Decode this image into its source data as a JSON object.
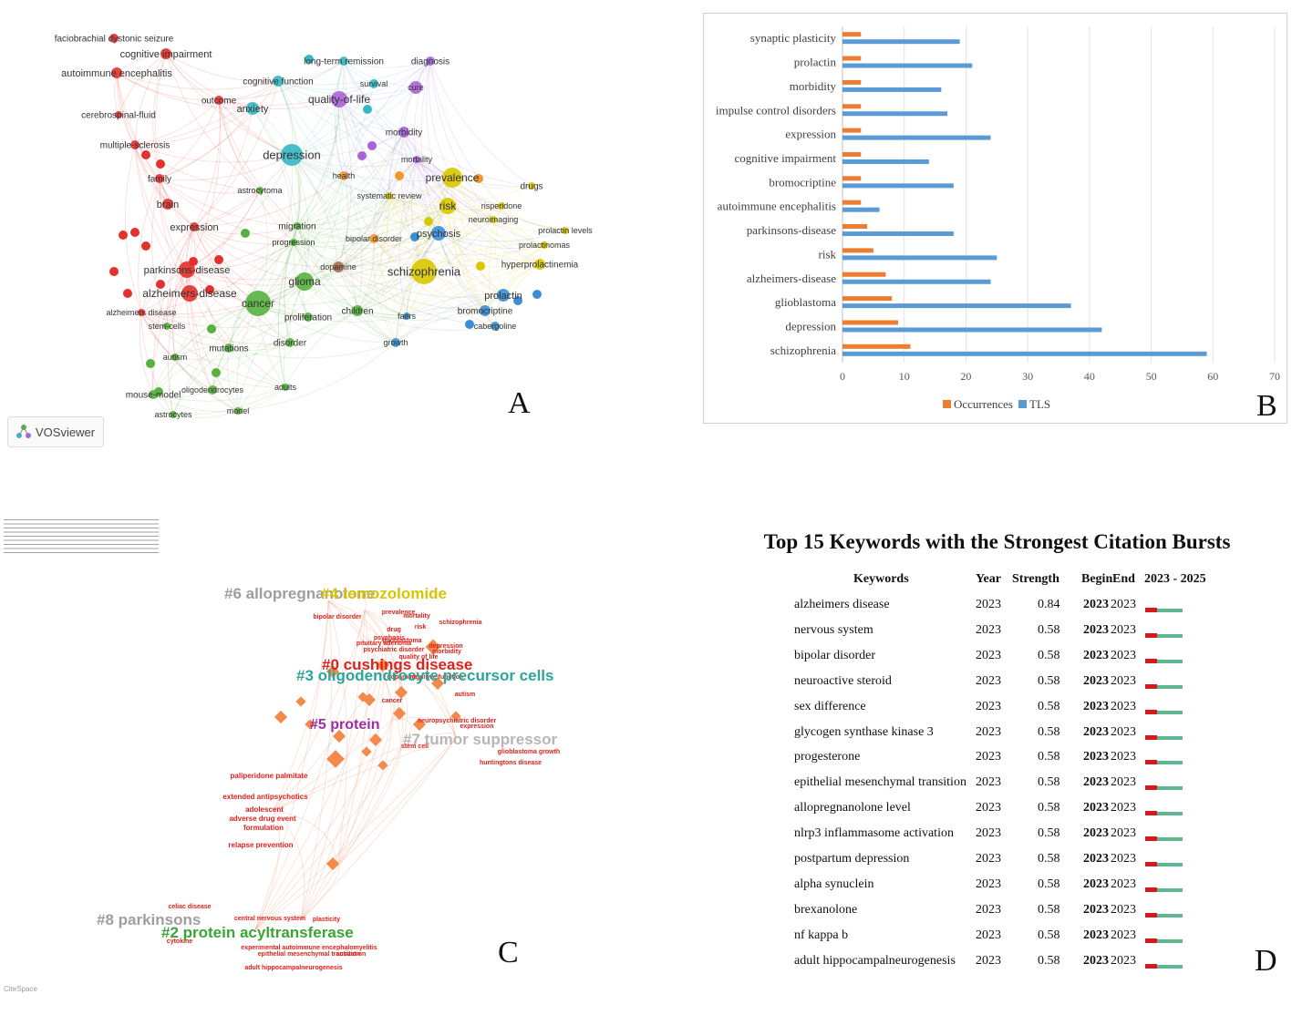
{
  "panel_labels": {
    "a": "A",
    "b": "B",
    "c": "C",
    "d": "D"
  },
  "vosviewer": {
    "badge_text": "VOSviewer",
    "nodes": [
      {
        "label": "faciobrachial dystonic seizure",
        "cluster": "red"
      },
      {
        "label": "cognitive impairment",
        "cluster": "red"
      },
      {
        "label": "autoimmune encephalitis",
        "cluster": "red"
      },
      {
        "label": "cerebrospinal-fluid",
        "cluster": "red"
      },
      {
        "label": "multiple-sclerosis",
        "cluster": "red"
      },
      {
        "label": "family",
        "cluster": "red"
      },
      {
        "label": "brain",
        "cluster": "red"
      },
      {
        "label": "expression",
        "cluster": "red"
      },
      {
        "label": "parkinsons-disease",
        "cluster": "red"
      },
      {
        "label": "alzheimers-disease",
        "cluster": "red"
      },
      {
        "label": "alzheimers disease",
        "cluster": "red"
      },
      {
        "label": "outcome",
        "cluster": "red"
      },
      {
        "label": "stem-cells",
        "cluster": "green"
      },
      {
        "label": "cancer",
        "cluster": "green"
      },
      {
        "label": "glioma",
        "cluster": "green"
      },
      {
        "label": "astrocytoma",
        "cluster": "green"
      },
      {
        "label": "migration",
        "cluster": "green"
      },
      {
        "label": "progression",
        "cluster": "green"
      },
      {
        "label": "proliferation",
        "cluster": "green"
      },
      {
        "label": "mutations",
        "cluster": "green"
      },
      {
        "label": "autism",
        "cluster": "green"
      },
      {
        "label": "disorder",
        "cluster": "green"
      },
      {
        "label": "children",
        "cluster": "green"
      },
      {
        "label": "mouse-model",
        "cluster": "green"
      },
      {
        "label": "oligodendrocytes",
        "cluster": "green"
      },
      {
        "label": "astrocytes",
        "cluster": "green"
      },
      {
        "label": "model",
        "cluster": "green"
      },
      {
        "label": "adults",
        "cluster": "green"
      },
      {
        "label": "dopamine",
        "cluster": "brown"
      },
      {
        "label": "depression",
        "cluster": "cyan"
      },
      {
        "label": "anxiety",
        "cluster": "cyan"
      },
      {
        "label": "cognitive function",
        "cluster": "cyan"
      },
      {
        "label": "long-term remission",
        "cluster": "cyan"
      },
      {
        "label": "survival",
        "cluster": "cyan"
      },
      {
        "label": "quality-of-life",
        "cluster": "purple"
      },
      {
        "label": "diagnosis",
        "cluster": "purple"
      },
      {
        "label": "cure",
        "cluster": "purple"
      },
      {
        "label": "morbidity",
        "cluster": "purple"
      },
      {
        "label": "mortality",
        "cluster": "purple"
      },
      {
        "label": "health",
        "cluster": "orange"
      },
      {
        "label": "systematic review",
        "cluster": "yellow"
      },
      {
        "label": "prevalence",
        "cluster": "yellow"
      },
      {
        "label": "drugs",
        "cluster": "yellow"
      },
      {
        "label": "risk",
        "cluster": "yellow"
      },
      {
        "label": "risperidone",
        "cluster": "yellow"
      },
      {
        "label": "neuroimaging",
        "cluster": "yellow"
      },
      {
        "label": "bipolar disorder",
        "cluster": "orange"
      },
      {
        "label": "psychosis",
        "cluster": "blue"
      },
      {
        "label": "prolactin levels",
        "cluster": "yellow"
      },
      {
        "label": "prolactinomas",
        "cluster": "yellow"
      },
      {
        "label": "hyperprolactinemia",
        "cluster": "yellow"
      },
      {
        "label": "schizophrenia",
        "cluster": "yellow"
      },
      {
        "label": "prolactin",
        "cluster": "blue"
      },
      {
        "label": "bromocriptine",
        "cluster": "blue"
      },
      {
        "label": "cabergoline",
        "cluster": "blue"
      },
      {
        "label": "faers",
        "cluster": "blue"
      },
      {
        "label": "growth",
        "cluster": "blue"
      }
    ]
  },
  "chart_data": [
    {
      "type": "bar",
      "orientation": "horizontal",
      "categories": [
        "synaptic plasticity",
        "prolactin",
        "morbidity",
        "impulse control disorders",
        "expression",
        "cognitive impairment",
        "bromocriptine",
        "autoimmune encephalitis",
        "parkinsons-disease",
        "risk",
        "alzheimers-disease",
        "glioblastoma",
        "depression",
        "schizophrenia"
      ],
      "series": [
        {
          "name": "Occurrences",
          "values": [
            3,
            3,
            3,
            3,
            3,
            3,
            3,
            3,
            4,
            5,
            7,
            8,
            9,
            11
          ]
        },
        {
          "name": "TLS",
          "values": [
            19,
            21,
            16,
            17,
            24,
            14,
            18,
            6,
            18,
            25,
            24,
            37,
            42,
            59
          ]
        }
      ],
      "xlim": [
        0,
        70
      ],
      "xticks": [
        "0",
        "10",
        "20",
        "30",
        "40",
        "50",
        "60",
        "70"
      ],
      "legend": [
        "Occurrences",
        "TLS"
      ],
      "legend_position": "bottom-center",
      "grid": true
    },
    {
      "type": "table",
      "title": "Top 15 Keywords with the Strongest Citation Bursts",
      "columns": [
        "Keywords",
        "Year",
        "Strength",
        "Begin",
        "End",
        "2023 - 2025"
      ],
      "rows": [
        {
          "keyword": "alzheimers disease",
          "year": "2023",
          "strength": "0.84",
          "begin": "2023",
          "end": "2023"
        },
        {
          "keyword": "nervous system",
          "year": "2023",
          "strength": "0.58",
          "begin": "2023",
          "end": "2023"
        },
        {
          "keyword": "bipolar disorder",
          "year": "2023",
          "strength": "0.58",
          "begin": "2023",
          "end": "2023"
        },
        {
          "keyword": "neuroactive steroid",
          "year": "2023",
          "strength": "0.58",
          "begin": "2023",
          "end": "2023"
        },
        {
          "keyword": "sex difference",
          "year": "2023",
          "strength": "0.58",
          "begin": "2023",
          "end": "2023"
        },
        {
          "keyword": "glycogen synthase kinase 3",
          "year": "2023",
          "strength": "0.58",
          "begin": "2023",
          "end": "2023"
        },
        {
          "keyword": "progesterone",
          "year": "2023",
          "strength": "0.58",
          "begin": "2023",
          "end": "2023"
        },
        {
          "keyword": "epithelial mesenchymal transition",
          "year": "2023",
          "strength": "0.58",
          "begin": "2023",
          "end": "2023"
        },
        {
          "keyword": "allopregnanolone level",
          "year": "2023",
          "strength": "0.58",
          "begin": "2023",
          "end": "2023"
        },
        {
          "keyword": "nlrp3 inflammasome activation",
          "year": "2023",
          "strength": "0.58",
          "begin": "2023",
          "end": "2023"
        },
        {
          "keyword": "postpartum depression",
          "year": "2023",
          "strength": "0.58",
          "begin": "2023",
          "end": "2023"
        },
        {
          "keyword": "alpha synuclein",
          "year": "2023",
          "strength": "0.58",
          "begin": "2023",
          "end": "2023"
        },
        {
          "keyword": "brexanolone",
          "year": "2023",
          "strength": "0.58",
          "begin": "2023",
          "end": "2023"
        },
        {
          "keyword": "nf kappa b",
          "year": "2023",
          "strength": "0.58",
          "begin": "2023",
          "end": "2023"
        },
        {
          "keyword": "adult hippocampalneurogenesis",
          "year": "2023",
          "strength": "0.58",
          "begin": "2023",
          "end": "2023"
        }
      ]
    }
  ],
  "citespace": {
    "cluster_labels": [
      "#6 allopregnanolone",
      "#4 temozolomide",
      "#0 cushings disease",
      "#3 oligodendrocyte precursor cells",
      "#5 protein",
      "#7 tumor suppressor",
      "#8 parkinsons",
      "#2 protein acyltransferase"
    ],
    "terms": [
      "bipolar disorder",
      "prevalence",
      "mortality",
      "schizophrenia",
      "drug",
      "risk",
      "psychosis",
      "glioblastoma",
      "depression",
      "pituitary adenoma",
      "morbidity",
      "psychiatric disorder",
      "quality of life",
      "dopamine",
      "cognitive function",
      "autism",
      "cancer",
      "neuropsychiatric disorder",
      "expression",
      "stem cell",
      "glioblastoma growth",
      "huntingtons disease",
      "paliperidone palmitate",
      "extended antipsychotics",
      "adolescent",
      "adverse drug event",
      "formulation",
      "relapse prevention",
      "celiac disease",
      "central nervous system",
      "cytokine",
      "experimental autoimmune encephalomyelitis",
      "epithelial mesenchymal transition",
      "adult hippocampalneurogenesis",
      "activation",
      "plasticity"
    ],
    "watermark": "CiteSpace"
  },
  "colors": {
    "red": "#e3312c",
    "green": "#56b23f",
    "cyan": "#36b7c4",
    "purple": "#a863d6",
    "yellow": "#d8c800",
    "blue": "#3b8ed6",
    "orange": "#f3962b",
    "brown": "#a86a4d",
    "occurrences": "#ed7d31",
    "tls": "#5b9bd5",
    "burst_red": "#d7191c",
    "burst_green": "#5fb590"
  }
}
